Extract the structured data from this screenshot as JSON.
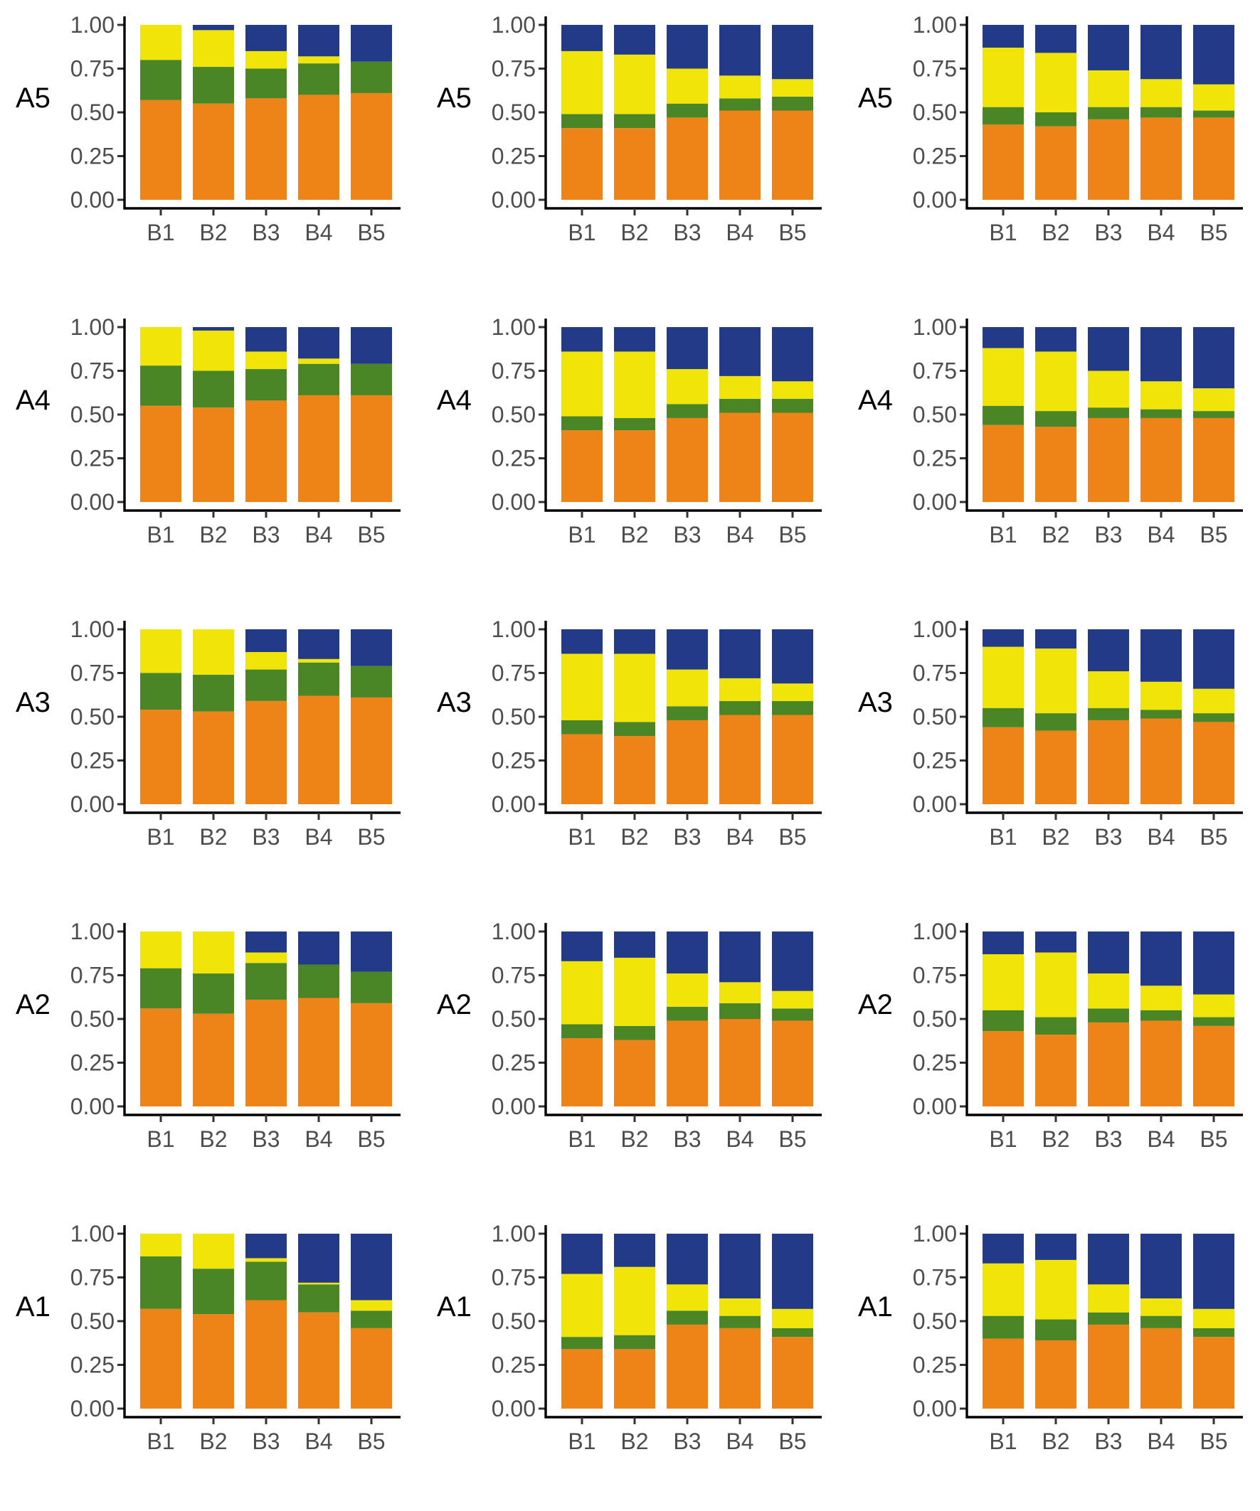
{
  "colors": {
    "orange": "#ee8318",
    "green": "#4b8626",
    "yellow": "#f0e409",
    "navy": "#223a88"
  },
  "chart_data": {
    "type": "bar",
    "stacked": true,
    "layout": "grid of 5 rows x 3 columns of 100% stacked bar charts",
    "x_tick_labels": [
      "B1",
      "B2",
      "B3",
      "B4",
      "B5"
    ],
    "y_tick_labels": [
      "0.00",
      "0.25",
      "0.50",
      "0.75",
      "1.00"
    ],
    "ylim": [
      0,
      1
    ],
    "stack_order_bottom_to_top": [
      "orange",
      "green",
      "yellow",
      "navy"
    ],
    "rows": [
      {
        "label": "A5",
        "panels": [
          {
            "orange": [
              0.57,
              0.55,
              0.58,
              0.6,
              0.61
            ],
            "green": [
              0.23,
              0.21,
              0.17,
              0.18,
              0.18
            ],
            "yellow": [
              0.2,
              0.21,
              0.1,
              0.04,
              0.0
            ],
            "navy": [
              0.0,
              0.03,
              0.15,
              0.18,
              0.21
            ]
          },
          {
            "orange": [
              0.41,
              0.41,
              0.47,
              0.51,
              0.51
            ],
            "green": [
              0.08,
              0.08,
              0.08,
              0.07,
              0.08
            ],
            "yellow": [
              0.36,
              0.34,
              0.2,
              0.13,
              0.1
            ],
            "navy": [
              0.15,
              0.17,
              0.25,
              0.29,
              0.31
            ]
          },
          {
            "orange": [
              0.43,
              0.42,
              0.46,
              0.47,
              0.47
            ],
            "green": [
              0.1,
              0.08,
              0.07,
              0.06,
              0.04
            ],
            "yellow": [
              0.34,
              0.34,
              0.21,
              0.16,
              0.15
            ],
            "navy": [
              0.13,
              0.16,
              0.26,
              0.31,
              0.34
            ]
          }
        ]
      },
      {
        "label": "A4",
        "panels": [
          {
            "orange": [
              0.55,
              0.54,
              0.58,
              0.61,
              0.61
            ],
            "green": [
              0.23,
              0.21,
              0.18,
              0.18,
              0.18
            ],
            "yellow": [
              0.22,
              0.23,
              0.1,
              0.03,
              0.0
            ],
            "navy": [
              0.0,
              0.02,
              0.14,
              0.18,
              0.21
            ]
          },
          {
            "orange": [
              0.41,
              0.41,
              0.48,
              0.51,
              0.51
            ],
            "green": [
              0.08,
              0.07,
              0.08,
              0.08,
              0.08
            ],
            "yellow": [
              0.37,
              0.38,
              0.2,
              0.13,
              0.1
            ],
            "navy": [
              0.14,
              0.14,
              0.24,
              0.28,
              0.31
            ]
          },
          {
            "orange": [
              0.44,
              0.43,
              0.48,
              0.48,
              0.48
            ],
            "green": [
              0.11,
              0.09,
              0.06,
              0.05,
              0.04
            ],
            "yellow": [
              0.33,
              0.34,
              0.21,
              0.16,
              0.13
            ],
            "navy": [
              0.12,
              0.14,
              0.25,
              0.31,
              0.35
            ]
          }
        ]
      },
      {
        "label": "A3",
        "panels": [
          {
            "orange": [
              0.54,
              0.53,
              0.59,
              0.62,
              0.61
            ],
            "green": [
              0.21,
              0.21,
              0.18,
              0.19,
              0.18
            ],
            "yellow": [
              0.25,
              0.26,
              0.1,
              0.02,
              0.0
            ],
            "navy": [
              0.0,
              0.0,
              0.13,
              0.17,
              0.21
            ]
          },
          {
            "orange": [
              0.4,
              0.39,
              0.48,
              0.51,
              0.51
            ],
            "green": [
              0.08,
              0.08,
              0.08,
              0.08,
              0.08
            ],
            "yellow": [
              0.38,
              0.39,
              0.21,
              0.13,
              0.1
            ],
            "navy": [
              0.14,
              0.14,
              0.23,
              0.28,
              0.31
            ]
          },
          {
            "orange": [
              0.44,
              0.42,
              0.48,
              0.49,
              0.47
            ],
            "green": [
              0.11,
              0.1,
              0.07,
              0.05,
              0.05
            ],
            "yellow": [
              0.35,
              0.37,
              0.21,
              0.16,
              0.14
            ],
            "navy": [
              0.1,
              0.11,
              0.24,
              0.3,
              0.34
            ]
          }
        ]
      },
      {
        "label": "A2",
        "panels": [
          {
            "orange": [
              0.56,
              0.53,
              0.61,
              0.62,
              0.59
            ],
            "green": [
              0.23,
              0.23,
              0.21,
              0.19,
              0.18
            ],
            "yellow": [
              0.21,
              0.24,
              0.06,
              0.0,
              0.0
            ],
            "navy": [
              0.0,
              0.0,
              0.12,
              0.19,
              0.23
            ]
          },
          {
            "orange": [
              0.39,
              0.38,
              0.49,
              0.5,
              0.49
            ],
            "green": [
              0.08,
              0.08,
              0.08,
              0.09,
              0.07
            ],
            "yellow": [
              0.36,
              0.39,
              0.19,
              0.12,
              0.1
            ],
            "navy": [
              0.17,
              0.15,
              0.24,
              0.29,
              0.34
            ]
          },
          {
            "orange": [
              0.43,
              0.41,
              0.48,
              0.49,
              0.46
            ],
            "green": [
              0.12,
              0.1,
              0.08,
              0.06,
              0.05
            ],
            "yellow": [
              0.32,
              0.37,
              0.2,
              0.14,
              0.13
            ],
            "navy": [
              0.13,
              0.12,
              0.24,
              0.31,
              0.36
            ]
          }
        ]
      },
      {
        "label": "A1",
        "panels": [
          {
            "orange": [
              0.57,
              0.54,
              0.62,
              0.55,
              0.46
            ],
            "green": [
              0.3,
              0.26,
              0.22,
              0.16,
              0.1
            ],
            "yellow": [
              0.13,
              0.2,
              0.02,
              0.01,
              0.06
            ],
            "navy": [
              0.0,
              0.0,
              0.14,
              0.28,
              0.38
            ]
          },
          {
            "orange": [
              0.34,
              0.34,
              0.48,
              0.46,
              0.41
            ],
            "green": [
              0.07,
              0.08,
              0.08,
              0.07,
              0.05
            ],
            "yellow": [
              0.36,
              0.39,
              0.15,
              0.1,
              0.11
            ],
            "navy": [
              0.23,
              0.19,
              0.29,
              0.37,
              0.43
            ]
          },
          {
            "orange": [
              0.4,
              0.39,
              0.48,
              0.46,
              0.41
            ],
            "green": [
              0.13,
              0.12,
              0.07,
              0.07,
              0.05
            ],
            "yellow": [
              0.3,
              0.34,
              0.16,
              0.1,
              0.11
            ],
            "navy": [
              0.17,
              0.15,
              0.29,
              0.37,
              0.43
            ]
          }
        ]
      }
    ]
  }
}
